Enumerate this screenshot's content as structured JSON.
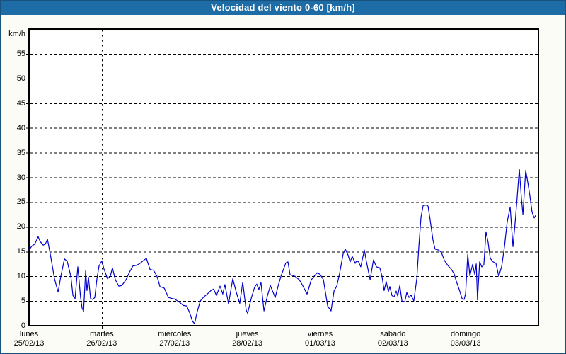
{
  "window": {
    "title": "Velocidad del viento 0-60 [km/h]"
  },
  "colors": {
    "titlebar_bg": "#1e6ca6",
    "titlebar_text": "#ffffff",
    "window_border": "#19517f",
    "outer_bg": "#fafcf5",
    "plot_bg": "#ffffff",
    "frame": "#000000",
    "grid": "#000000",
    "line": "#0000cc",
    "label_text": "#000000"
  },
  "chart_data": {
    "type": "line",
    "title": "Velocidad del viento 0-60 [km/h]",
    "ylabel": "km/h",
    "ylim": [
      0,
      60
    ],
    "yticks": [
      0,
      5,
      10,
      15,
      20,
      25,
      30,
      35,
      40,
      45,
      50,
      55
    ],
    "grid": "dashed",
    "legend_position": "none",
    "x_unit": "hours from Monday 00:00",
    "xlim_hours": [
      0,
      168
    ],
    "days": [
      {
        "name": "lunes",
        "date": "25/02/13",
        "t_hours": 0
      },
      {
        "name": "martes",
        "date": "26/02/13",
        "t_hours": 24
      },
      {
        "name": "miércoles",
        "date": "27/02/13",
        "t_hours": 48
      },
      {
        "name": "jueves",
        "date": "28/02/13",
        "t_hours": 72
      },
      {
        "name": "viernes",
        "date": "01/03/13",
        "t_hours": 96
      },
      {
        "name": "sábado",
        "date": "02/03/13",
        "t_hours": 120
      },
      {
        "name": "domingo",
        "date": "03/03/13",
        "t_hours": 144
      }
    ],
    "series": [
      {
        "name": "Velocidad del viento",
        "color": "#0000cc",
        "points": [
          [
            0,
            15.3
          ],
          [
            0.9,
            16.1
          ],
          [
            1.9,
            16.5
          ],
          [
            3,
            18
          ],
          [
            3.7,
            17
          ],
          [
            4.7,
            16.3
          ],
          [
            5.4,
            16.5
          ],
          [
            6.1,
            17.5
          ],
          [
            7.2,
            13.8
          ],
          [
            8.4,
            9.5
          ],
          [
            9.6,
            6.8
          ],
          [
            10.5,
            10
          ],
          [
            11.7,
            13.5
          ],
          [
            12.6,
            13
          ],
          [
            13.8,
            10
          ],
          [
            14.5,
            6.1
          ],
          [
            15.2,
            5.5
          ],
          [
            16.1,
            11.9
          ],
          [
            17,
            5.7
          ],
          [
            17.5,
            3.6
          ],
          [
            18,
            2.9
          ],
          [
            18.7,
            11.2
          ],
          [
            19.1,
            7.1
          ],
          [
            19.6,
            9.8
          ],
          [
            20.3,
            5.5
          ],
          [
            21,
            5.3
          ],
          [
            21.7,
            5.7
          ],
          [
            22.4,
            9.5
          ],
          [
            23.1,
            12.1
          ],
          [
            24,
            13.1
          ],
          [
            24.7,
            11.5
          ],
          [
            25.9,
            9.5
          ],
          [
            26.8,
            10
          ],
          [
            27.5,
            11.7
          ],
          [
            28.5,
            9.3
          ],
          [
            29.6,
            8
          ],
          [
            30.6,
            8.1
          ],
          [
            32,
            9.3
          ],
          [
            33.1,
            10.8
          ],
          [
            34.3,
            12.1
          ],
          [
            35.5,
            12.2
          ],
          [
            36.6,
            12.6
          ],
          [
            37.8,
            13.2
          ],
          [
            38.7,
            13.6
          ],
          [
            39.9,
            11.4
          ],
          [
            41.1,
            11.2
          ],
          [
            42.2,
            10
          ],
          [
            43.2,
            7.9
          ],
          [
            44.6,
            7.6
          ],
          [
            46,
            5.7
          ],
          [
            47.1,
            5.5
          ],
          [
            48,
            5.4
          ],
          [
            49.5,
            4.8
          ],
          [
            50.9,
            4.1
          ],
          [
            52,
            4
          ],
          [
            53,
            2.6
          ],
          [
            53.9,
            0.9
          ],
          [
            54.6,
            0.4
          ],
          [
            55.5,
            2.9
          ],
          [
            56.5,
            5
          ],
          [
            57.6,
            5.8
          ],
          [
            58.8,
            6.4
          ],
          [
            60,
            7.1
          ],
          [
            60.9,
            7.4
          ],
          [
            61.8,
            6.1
          ],
          [
            63,
            8
          ],
          [
            63.9,
            6.4
          ],
          [
            64.6,
            8.3
          ],
          [
            65.8,
            4.4
          ],
          [
            67.2,
            9.5
          ],
          [
            68.4,
            6.7
          ],
          [
            69.5,
            4.5
          ],
          [
            70.5,
            8.8
          ],
          [
            71.6,
            3.2
          ],
          [
            72.1,
            2.5
          ],
          [
            73.3,
            5.5
          ],
          [
            74.4,
            7.8
          ],
          [
            75.1,
            8.4
          ],
          [
            75.8,
            7.3
          ],
          [
            76.5,
            8.7
          ],
          [
            77.5,
            3
          ],
          [
            78.6,
            6
          ],
          [
            79.6,
            8.1
          ],
          [
            81.2,
            5.7
          ],
          [
            82.1,
            7.9
          ],
          [
            83.1,
            10
          ],
          [
            84.7,
            12.7
          ],
          [
            85.4,
            12.9
          ],
          [
            86.1,
            10.3
          ],
          [
            87.7,
            10
          ],
          [
            89.1,
            9.3
          ],
          [
            90.1,
            8.3
          ],
          [
            91.7,
            6.4
          ],
          [
            93.1,
            9.3
          ],
          [
            95,
            10.7
          ],
          [
            96,
            10.4
          ],
          [
            97.1,
            9.3
          ],
          [
            98.5,
            4
          ],
          [
            99.6,
            3
          ],
          [
            100.6,
            7
          ],
          [
            101.5,
            8
          ],
          [
            102.4,
            10.5
          ],
          [
            103.6,
            14.5
          ],
          [
            104.3,
            15.5
          ],
          [
            105.2,
            14.3
          ],
          [
            105.9,
            12.9
          ],
          [
            106.6,
            14
          ],
          [
            107.6,
            12.6
          ],
          [
            108,
            13.1
          ],
          [
            108.7,
            12.9
          ],
          [
            109.4,
            11.9
          ],
          [
            110.6,
            15.3
          ],
          [
            111.3,
            12.9
          ],
          [
            112,
            10.8
          ],
          [
            112.5,
            9.3
          ],
          [
            113.6,
            13.3
          ],
          [
            114.6,
            11.9
          ],
          [
            115.7,
            11.7
          ],
          [
            116.4,
            10
          ],
          [
            117.1,
            7.1
          ],
          [
            117.8,
            8.9
          ],
          [
            118.5,
            6.9
          ],
          [
            119,
            7.9
          ],
          [
            119.7,
            6.1
          ],
          [
            120.4,
            5.8
          ],
          [
            121.1,
            7
          ],
          [
            121.6,
            6
          ],
          [
            122.3,
            8.1
          ],
          [
            123,
            5
          ],
          [
            123.9,
            4.8
          ],
          [
            124.6,
            6.7
          ],
          [
            125.3,
            5.7
          ],
          [
            126,
            6.2
          ],
          [
            126.9,
            5
          ],
          [
            127.9,
            9.5
          ],
          [
            128.6,
            16.2
          ],
          [
            129.3,
            22
          ],
          [
            130,
            24.3
          ],
          [
            130.9,
            24.4
          ],
          [
            131.6,
            24.2
          ],
          [
            132.3,
            21.4
          ],
          [
            133.2,
            17.4
          ],
          [
            133.9,
            15.5
          ],
          [
            135.1,
            15.3
          ],
          [
            136,
            14.8
          ],
          [
            137,
            13.2
          ],
          [
            138.1,
            12.2
          ],
          [
            139.3,
            11.4
          ],
          [
            140.2,
            10.5
          ],
          [
            140.9,
            9
          ],
          [
            141.9,
            7.3
          ],
          [
            142.8,
            5.5
          ],
          [
            143.5,
            5.3
          ],
          [
            144,
            6.5
          ],
          [
            144.7,
            14.4
          ],
          [
            145.4,
            10.1
          ],
          [
            146.3,
            12.4
          ],
          [
            147,
            10.4
          ],
          [
            147.5,
            12.5
          ],
          [
            147.9,
            5.2
          ],
          [
            148.6,
            12.9
          ],
          [
            149.3,
            11.9
          ],
          [
            150,
            12.3
          ],
          [
            150.7,
            19
          ],
          [
            151.4,
            16.9
          ],
          [
            152.1,
            13.6
          ],
          [
            153.1,
            12.9
          ],
          [
            154,
            12.6
          ],
          [
            154.9,
            10
          ],
          [
            155.9,
            12
          ],
          [
            156.8,
            16
          ],
          [
            157.7,
            21
          ],
          [
            158.7,
            24
          ],
          [
            159.6,
            16
          ],
          [
            160.3,
            20.7
          ],
          [
            161,
            26
          ],
          [
            161.7,
            31.7
          ],
          [
            162.4,
            25.7
          ],
          [
            162.9,
            22.5
          ],
          [
            163.8,
            31.4
          ],
          [
            164.5,
            29
          ],
          [
            165.2,
            26.2
          ],
          [
            165.9,
            23
          ],
          [
            166.6,
            21.8
          ],
          [
            167.1,
            22.3
          ]
        ]
      }
    ]
  }
}
